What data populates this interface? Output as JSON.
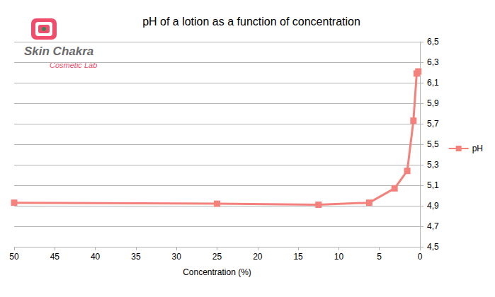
{
  "chart_data": {
    "type": "line",
    "title": "pH of a lotion as a function of concentration",
    "x_label": "Concentration (%)",
    "annotations": [
      "Skin Chakra",
      "Cosmetic Lab"
    ],
    "x": [
      50,
      25,
      12.5,
      6.25,
      3.125,
      1.5625,
      0.8,
      0.4,
      0.2
    ],
    "series": [
      {
        "name": "pH",
        "color": "#f4827c",
        "marker": "square",
        "line_style": "solid",
        "values": [
          4.93,
          4.92,
          4.91,
          4.93,
          5.07,
          5.24,
          5.73,
          6.19,
          6.21
        ]
      }
    ],
    "xlim": [
      50,
      0
    ],
    "xticks": [
      50,
      45,
      40,
      35,
      30,
      25,
      20,
      15,
      10,
      5,
      0
    ],
    "ylim": [
      4.5,
      6.5
    ],
    "yticks": [
      {
        "value": 4.5,
        "label": "4,5"
      },
      {
        "value": 4.7,
        "label": "4,7"
      },
      {
        "value": 4.9,
        "label": "4,9"
      },
      {
        "value": 5.1,
        "label": "5,1"
      },
      {
        "value": 5.3,
        "label": "5,3"
      },
      {
        "value": 5.5,
        "label": "5,5"
      },
      {
        "value": 5.7,
        "label": "5,7"
      },
      {
        "value": 5.9,
        "label": "5,9"
      },
      {
        "value": 6.1,
        "label": "6,1"
      },
      {
        "value": 6.3,
        "label": "6,3"
      },
      {
        "value": 6.5,
        "label": "6,5"
      }
    ],
    "grid": "y",
    "legend": "right"
  }
}
